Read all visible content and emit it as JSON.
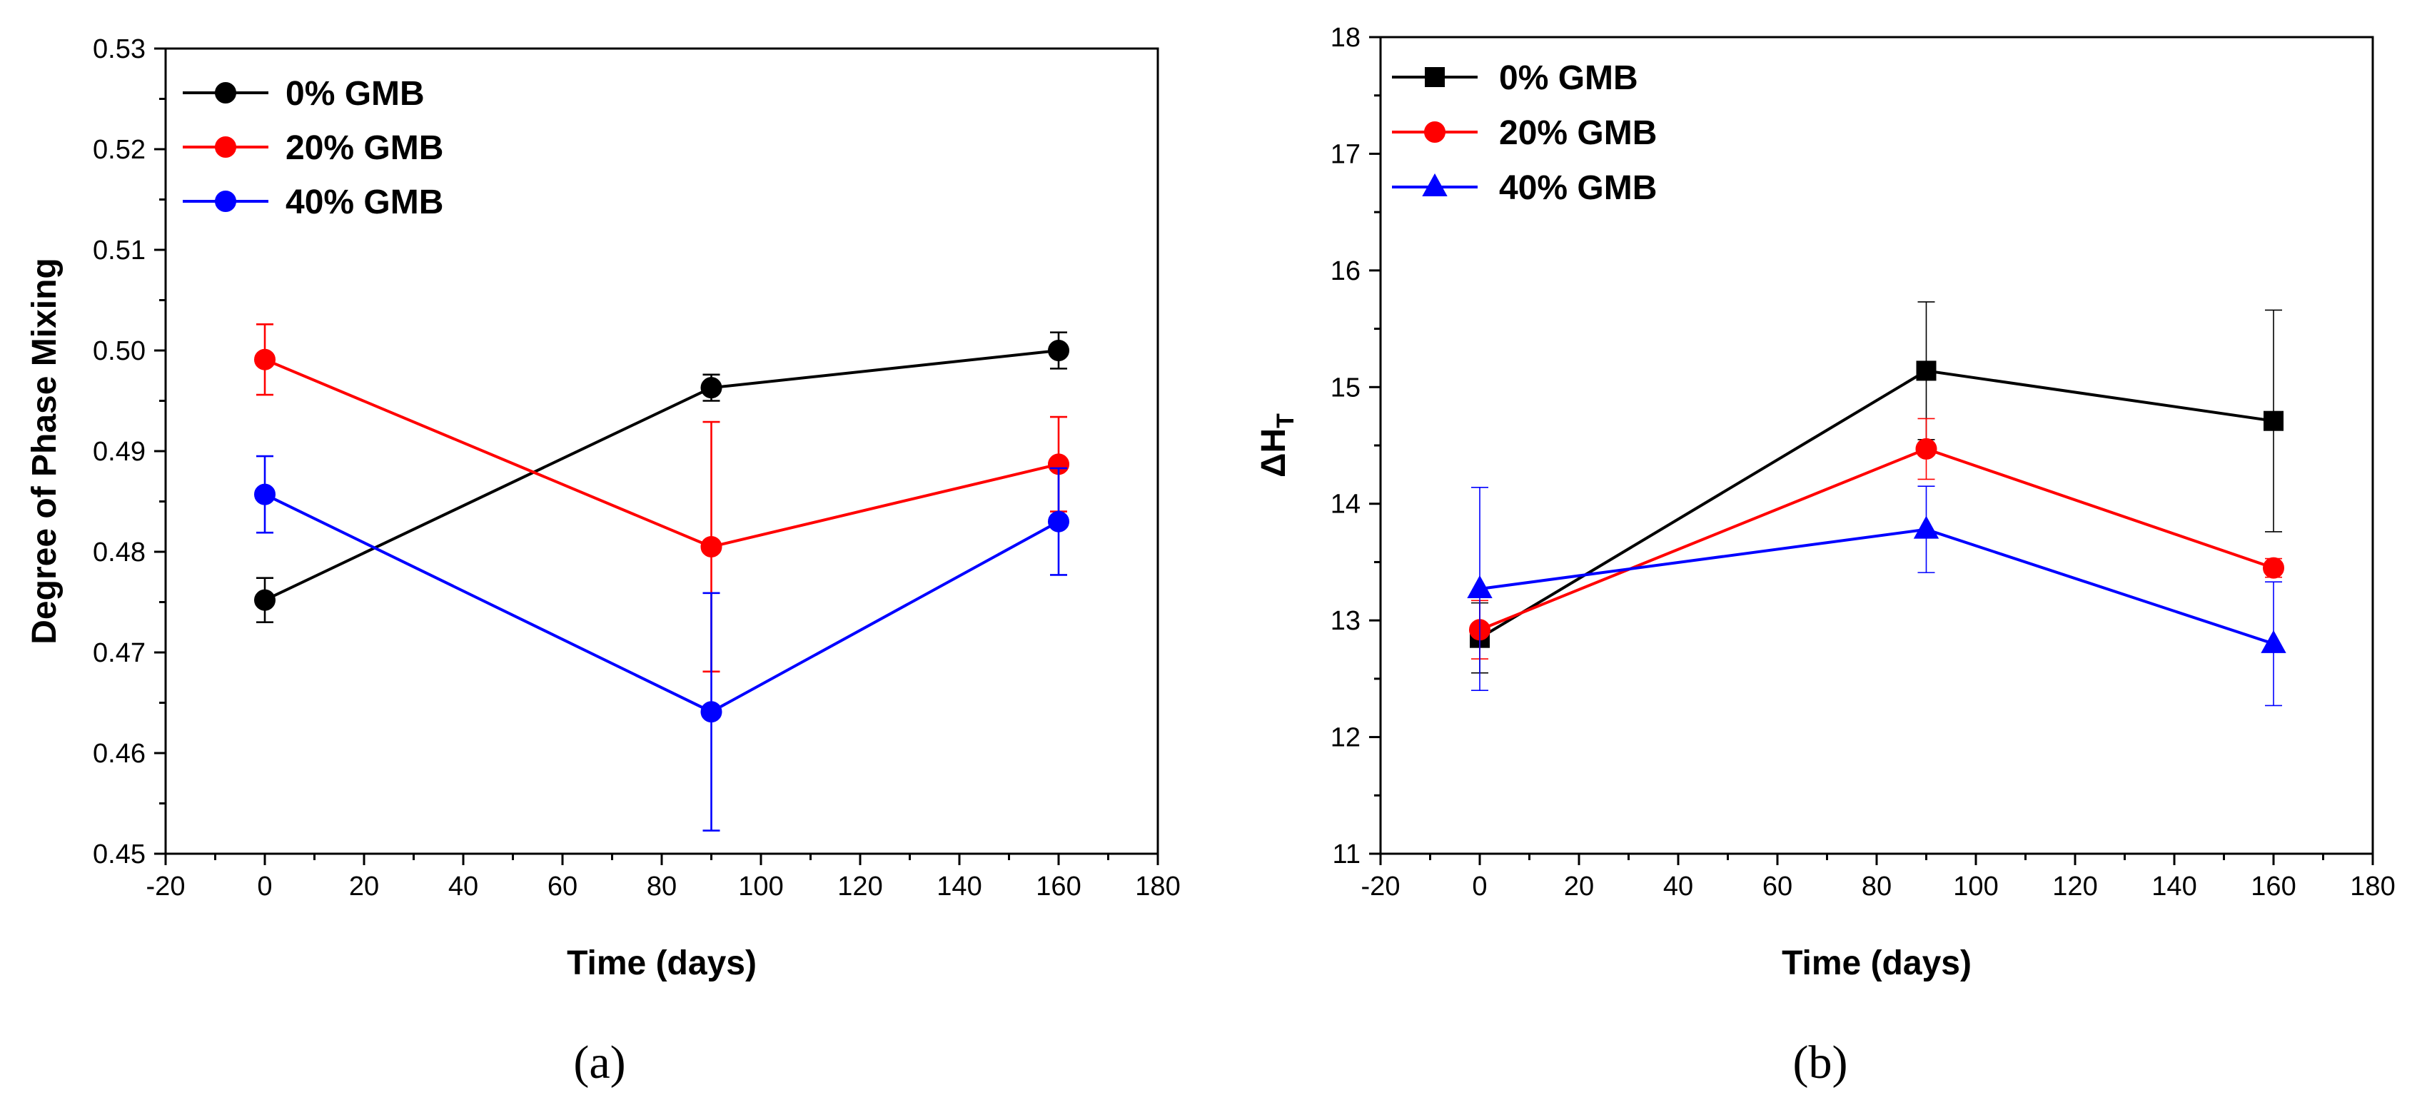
{
  "chart_data": [
    {
      "type": "line",
      "panel_label": "(a)",
      "title": "",
      "xlabel": "Time (days)",
      "ylabel": "Degree of Phase Mixing",
      "xlim": [
        -20,
        180
      ],
      "ylim": [
        0.45,
        0.53
      ],
      "x_ticks": [
        "-20",
        "0",
        "20",
        "40",
        "60",
        "80",
        "100",
        "120",
        "140",
        "160",
        "180"
      ],
      "y_ticks": [
        "0.45",
        "0.46",
        "0.47",
        "0.48",
        "0.49",
        "0.50",
        "0.51",
        "0.52",
        "0.53"
      ],
      "marker": "circle",
      "legend_position": "top-left",
      "grid": false,
      "x": [
        0,
        90,
        160
      ],
      "series": [
        {
          "name": "0% GMB",
          "color": "#000000",
          "values": [
            0.4752,
            0.4963,
            0.5
          ],
          "errors": [
            0.0022,
            0.0013,
            0.0018
          ]
        },
        {
          "name": "20% GMB",
          "color": "#ff0000",
          "values": [
            0.4991,
            0.4805,
            0.4887
          ],
          "errors": [
            0.0035,
            0.0124,
            0.0047
          ]
        },
        {
          "name": "40% GMB",
          "color": "#0000ff",
          "values": [
            0.4857,
            0.4641,
            0.483
          ],
          "errors": [
            0.0038,
            0.0118,
            0.0053
          ]
        }
      ]
    },
    {
      "type": "line",
      "panel_label": "(b)",
      "title": "",
      "xlabel": "Time (days)",
      "ylabel": "ΔH",
      "ylabel_subscript": "T",
      "xlim": [
        -20,
        180
      ],
      "ylim": [
        11,
        18
      ],
      "x_ticks": [
        "-20",
        "0",
        "20",
        "40",
        "60",
        "80",
        "100",
        "120",
        "140",
        "160",
        "180"
      ],
      "y_ticks": [
        "11",
        "12",
        "13",
        "14",
        "15",
        "16",
        "17",
        "18"
      ],
      "legend_position": "top-left",
      "grid": false,
      "x": [
        0,
        90,
        160
      ],
      "series": [
        {
          "name": "0% GMB",
          "color": "#000000",
          "marker": "square",
          "values": [
            12.85,
            15.14,
            14.71
          ],
          "errors": [
            0.3,
            0.59,
            0.95
          ]
        },
        {
          "name": "20% GMB",
          "color": "#ff0000",
          "marker": "circle",
          "values": [
            12.92,
            14.47,
            13.45
          ],
          "errors": [
            0.25,
            0.26,
            0.08
          ]
        },
        {
          "name": "40% GMB",
          "color": "#0000ff",
          "marker": "triangle",
          "values": [
            13.27,
            13.78,
            12.8
          ],
          "errors": [
            0.87,
            0.37,
            0.53
          ]
        }
      ]
    }
  ]
}
